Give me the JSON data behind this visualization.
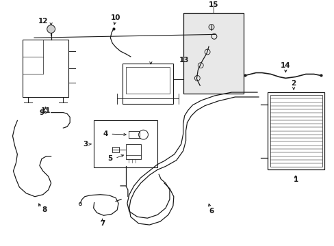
{
  "bg_color": "#ffffff",
  "line_color": "#1a1a1a",
  "gray_fill": "#e8e8e8",
  "fig_width": 4.89,
  "fig_height": 3.6,
  "dpi": 100,
  "xlim": [
    0,
    489
  ],
  "ylim": [
    0,
    360
  ]
}
